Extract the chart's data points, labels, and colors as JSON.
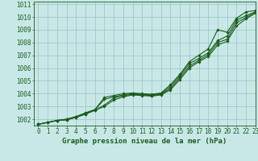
{
  "title": "Graphe pression niveau de la mer (hPa)",
  "bg_color": "#c8e8e8",
  "plot_bg_color": "#c8e8e8",
  "grid_color": "#a0c8c8",
  "line_color": "#1a5c1a",
  "xlim": [
    -0.5,
    23
  ],
  "ylim": [
    1001.5,
    1011.2
  ],
  "yticks": [
    1002,
    1003,
    1004,
    1005,
    1006,
    1007,
    1008,
    1009,
    1010,
    1011
  ],
  "xticks": [
    0,
    1,
    2,
    3,
    4,
    5,
    6,
    7,
    8,
    9,
    10,
    11,
    12,
    13,
    14,
    15,
    16,
    17,
    18,
    19,
    20,
    21,
    22,
    23
  ],
  "series": [
    [
      1001.6,
      1001.75,
      1001.9,
      1002.0,
      1002.2,
      1002.5,
      1002.75,
      1003.7,
      1003.85,
      1004.0,
      1004.05,
      1004.0,
      1003.95,
      1004.05,
      1004.7,
      1005.5,
      1006.5,
      1007.0,
      1007.5,
      1009.0,
      1008.8,
      1009.9,
      1010.4,
      1010.5
    ],
    [
      1001.6,
      1001.75,
      1001.9,
      1002.0,
      1002.2,
      1002.45,
      1002.75,
      1003.55,
      1003.75,
      1003.9,
      1004.0,
      1003.95,
      1003.9,
      1004.0,
      1004.55,
      1005.4,
      1006.35,
      1006.75,
      1007.2,
      1008.15,
      1008.5,
      1009.75,
      1010.1,
      1010.4
    ],
    [
      1001.6,
      1001.75,
      1001.9,
      1001.95,
      1002.15,
      1002.4,
      1002.7,
      1003.1,
      1003.65,
      1003.85,
      1003.95,
      1003.9,
      1003.85,
      1003.95,
      1004.4,
      1005.25,
      1006.15,
      1006.6,
      1007.05,
      1008.0,
      1008.25,
      1009.55,
      1009.95,
      1010.35
    ],
    [
      1001.6,
      1001.75,
      1001.9,
      1001.95,
      1002.15,
      1002.4,
      1002.7,
      1003.0,
      1003.5,
      1003.75,
      1003.9,
      1003.85,
      1003.8,
      1003.9,
      1004.3,
      1005.1,
      1006.0,
      1006.5,
      1006.9,
      1007.8,
      1008.1,
      1009.3,
      1009.85,
      1010.3
    ]
  ],
  "marker": "D",
  "marker_size": 1.8,
  "line_width": 0.8,
  "tick_fontsize": 5.5,
  "title_fontsize": 6.5
}
